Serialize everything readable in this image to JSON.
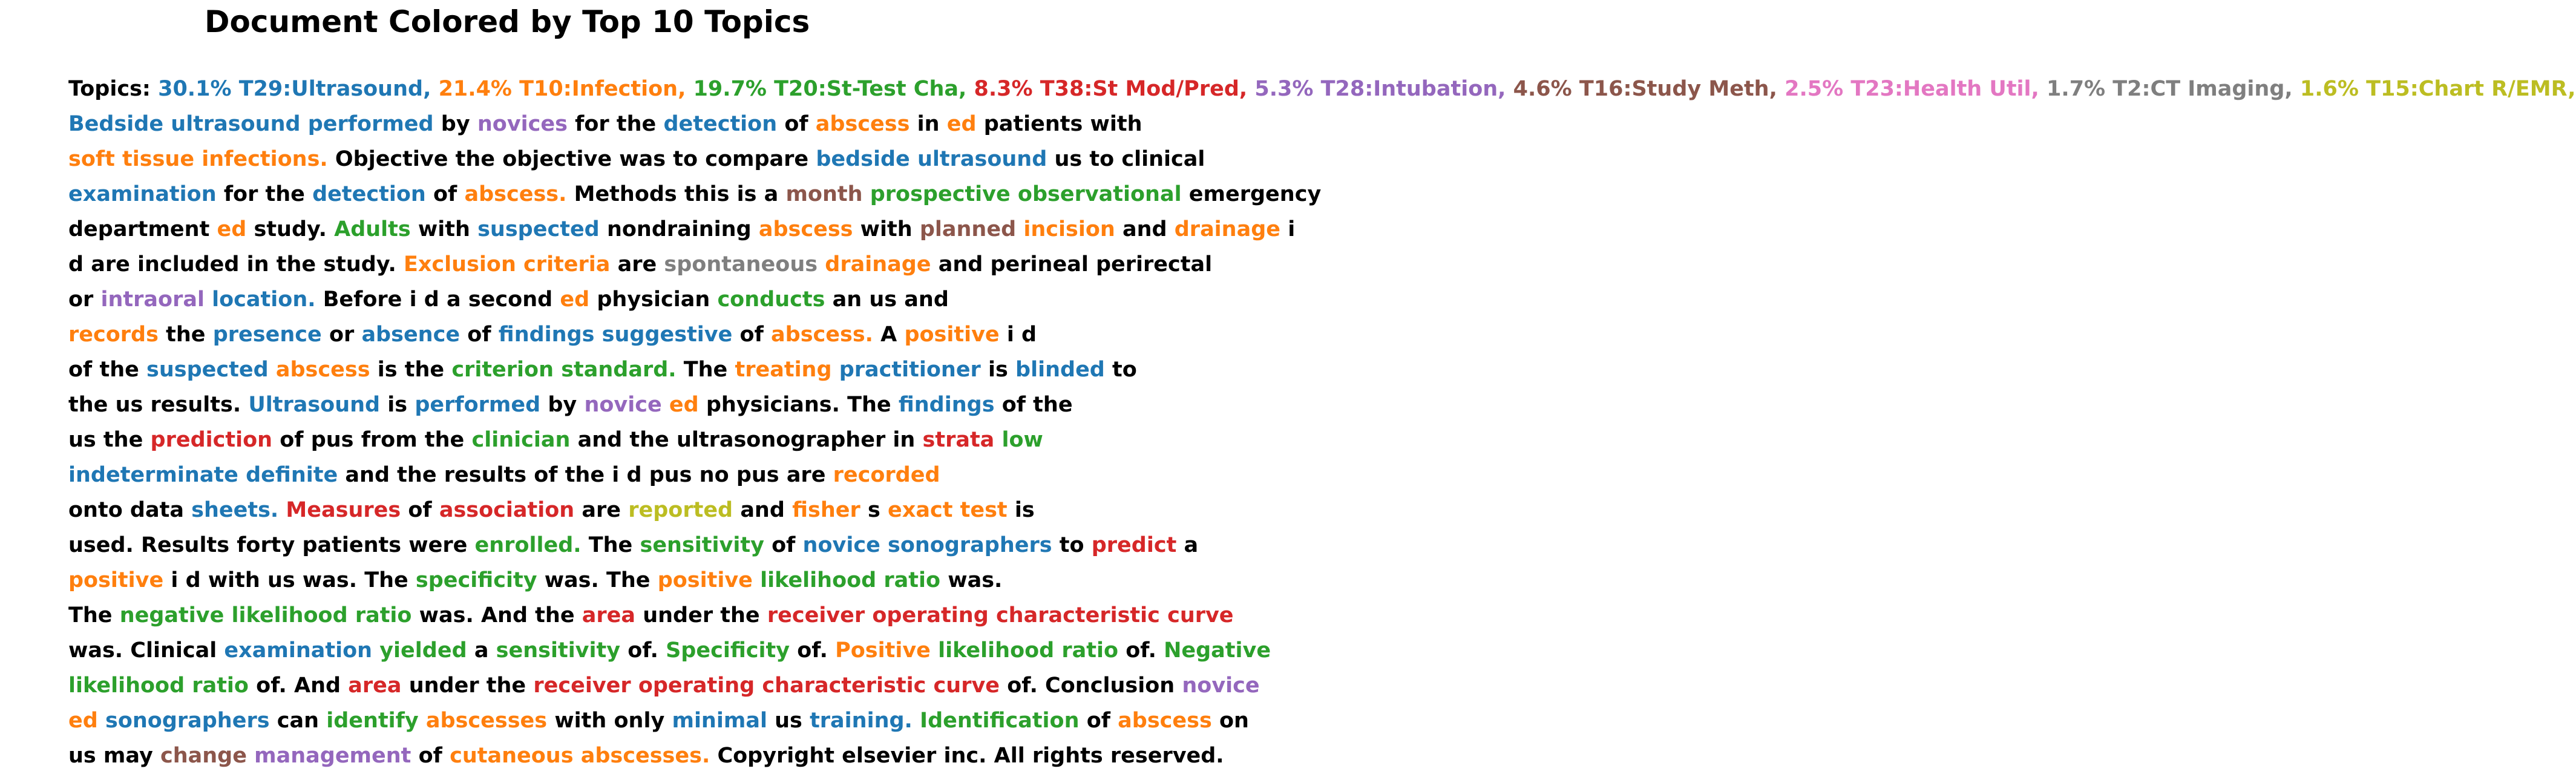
{
  "title": "Document Colored by Top 10 Topics",
  "colors": {
    "k": "#000000",
    "b": "#1f77b4",
    "o": "#ff7f0e",
    "g": "#2ca02c",
    "r": "#d62728",
    "p": "#9467bd",
    "n": "#8c564b",
    "i": "#e377c2",
    "y": "#7f7f7f",
    "l": "#bcbd22"
  },
  "lines": [
    [
      [
        "Topics:",
        "k"
      ],
      [
        "30.1% T29:Ultrasound,",
        "b"
      ],
      [
        "21.4% T10:Infection,",
        "o"
      ],
      [
        "19.7% T20:St-Test Cha,",
        "g"
      ],
      [
        "8.3% T38:St Mod/Pred,",
        "r"
      ],
      [
        "5.3% T28:Intubation,",
        "p"
      ],
      [
        "4.6% T16:Study Meth,",
        "n"
      ],
      [
        "2.5% T23:Health Util,",
        "i"
      ],
      [
        "1.7% T2:CT Imaging,",
        "y"
      ],
      [
        "1.6% T15:Chart R/EMR,",
        "l"
      ]
    ],
    [
      [
        "Bedside ultrasound performed",
        "b"
      ],
      [
        "by",
        "k"
      ],
      [
        "novices",
        "p"
      ],
      [
        "for the",
        "k"
      ],
      [
        "detection",
        "b"
      ],
      [
        "of",
        "k"
      ],
      [
        "abscess",
        "o"
      ],
      [
        "in",
        "k"
      ],
      [
        "ed",
        "o"
      ],
      [
        "patients with",
        "k"
      ]
    ],
    [
      [
        "soft tissue infections.",
        "o"
      ],
      [
        "Objective the objective was to compare",
        "k"
      ],
      [
        "bedside ultrasound",
        "b"
      ],
      [
        "us to clinical",
        "k"
      ]
    ],
    [
      [
        "examination",
        "b"
      ],
      [
        "for the",
        "k"
      ],
      [
        "detection",
        "b"
      ],
      [
        "of",
        "k"
      ],
      [
        "abscess.",
        "o"
      ],
      [
        "Methods this is a",
        "k"
      ],
      [
        "month",
        "n"
      ],
      [
        "prospective observational",
        "g"
      ],
      [
        "emergency",
        "k"
      ]
    ],
    [
      [
        "department",
        "k"
      ],
      [
        "ed",
        "o"
      ],
      [
        "study.",
        "k"
      ],
      [
        "Adults",
        "g"
      ],
      [
        "with",
        "k"
      ],
      [
        "suspected",
        "b"
      ],
      [
        "nondraining",
        "k"
      ],
      [
        "abscess",
        "o"
      ],
      [
        "with",
        "k"
      ],
      [
        "planned",
        "n"
      ],
      [
        "incision",
        "o"
      ],
      [
        "and",
        "k"
      ],
      [
        "drainage",
        "o"
      ],
      [
        "i",
        "k"
      ]
    ],
    [
      [
        "d are included in the study.",
        "k"
      ],
      [
        "Exclusion criteria",
        "o"
      ],
      [
        "are",
        "k"
      ],
      [
        "spontaneous",
        "y"
      ],
      [
        "drainage",
        "o"
      ],
      [
        "and perineal perirectal",
        "k"
      ]
    ],
    [
      [
        "or",
        "k"
      ],
      [
        "intraoral",
        "p"
      ],
      [
        "location.",
        "b"
      ],
      [
        "Before i d a second",
        "k"
      ],
      [
        "ed",
        "o"
      ],
      [
        "physician",
        "k"
      ],
      [
        "conducts",
        "g"
      ],
      [
        "an us and",
        "k"
      ]
    ],
    [
      [
        "records",
        "o"
      ],
      [
        "the",
        "k"
      ],
      [
        "presence",
        "b"
      ],
      [
        "or",
        "k"
      ],
      [
        "absence",
        "b"
      ],
      [
        "of",
        "k"
      ],
      [
        "findings suggestive",
        "b"
      ],
      [
        "of",
        "k"
      ],
      [
        "abscess.",
        "o"
      ],
      [
        "A",
        "k"
      ],
      [
        "positive",
        "o"
      ],
      [
        "i d",
        "k"
      ]
    ],
    [
      [
        "of the",
        "k"
      ],
      [
        "suspected",
        "b"
      ],
      [
        "abscess",
        "o"
      ],
      [
        "is the",
        "k"
      ],
      [
        "criterion standard.",
        "g"
      ],
      [
        "The",
        "k"
      ],
      [
        "treating",
        "o"
      ],
      [
        "practitioner",
        "b"
      ],
      [
        "is",
        "k"
      ],
      [
        "blinded",
        "b"
      ],
      [
        "to",
        "k"
      ]
    ],
    [
      [
        "the us results.",
        "k"
      ],
      [
        "Ultrasound",
        "b"
      ],
      [
        "is",
        "k"
      ],
      [
        "performed",
        "b"
      ],
      [
        "by",
        "k"
      ],
      [
        "novice",
        "p"
      ],
      [
        "ed",
        "o"
      ],
      [
        "physicians. The",
        "k"
      ],
      [
        "findings",
        "b"
      ],
      [
        "of the",
        "k"
      ]
    ],
    [
      [
        "us the",
        "k"
      ],
      [
        "prediction",
        "r"
      ],
      [
        "of pus from the",
        "k"
      ],
      [
        "clinician",
        "g"
      ],
      [
        "and the ultrasonographer in",
        "k"
      ],
      [
        "strata",
        "r"
      ],
      [
        "low",
        "g"
      ]
    ],
    [
      [
        "indeterminate definite",
        "b"
      ],
      [
        "and the results of the i d pus no pus are",
        "k"
      ],
      [
        "recorded",
        "o"
      ]
    ],
    [
      [
        "onto data",
        "k"
      ],
      [
        "sheets.",
        "b"
      ],
      [
        "Measures",
        "r"
      ],
      [
        "of",
        "k"
      ],
      [
        "association",
        "r"
      ],
      [
        "are",
        "k"
      ],
      [
        "reported",
        "l"
      ],
      [
        "and",
        "k"
      ],
      [
        "fisher",
        "o"
      ],
      [
        "s",
        "k"
      ],
      [
        "exact test",
        "o"
      ],
      [
        "is",
        "k"
      ]
    ],
    [
      [
        "used. Results forty patients were",
        "k"
      ],
      [
        "enrolled.",
        "g"
      ],
      [
        "The",
        "k"
      ],
      [
        "sensitivity",
        "g"
      ],
      [
        "of",
        "k"
      ],
      [
        "novice sonographers",
        "b"
      ],
      [
        "to",
        "k"
      ],
      [
        "predict",
        "r"
      ],
      [
        "a",
        "k"
      ]
    ],
    [
      [
        "positive",
        "o"
      ],
      [
        "i d with us was. The",
        "k"
      ],
      [
        "specificity",
        "g"
      ],
      [
        "was. The",
        "k"
      ],
      [
        "positive",
        "o"
      ],
      [
        "likelihood ratio",
        "g"
      ],
      [
        "was.",
        "k"
      ]
    ],
    [
      [
        "The",
        "k"
      ],
      [
        "negative likelihood ratio",
        "g"
      ],
      [
        "was. And the",
        "k"
      ],
      [
        "area",
        "r"
      ],
      [
        "under the",
        "k"
      ],
      [
        "receiver operating characteristic curve",
        "r"
      ]
    ],
    [
      [
        "was. Clinical",
        "k"
      ],
      [
        "examination",
        "b"
      ],
      [
        "yielded",
        "g"
      ],
      [
        "a",
        "k"
      ],
      [
        "sensitivity",
        "g"
      ],
      [
        "of.",
        "k"
      ],
      [
        "Specificity",
        "g"
      ],
      [
        "of.",
        "k"
      ],
      [
        "Positive",
        "o"
      ],
      [
        "likelihood ratio",
        "g"
      ],
      [
        "of.",
        "k"
      ],
      [
        "Negative",
        "g"
      ]
    ],
    [
      [
        "likelihood ratio",
        "g"
      ],
      [
        "of. And",
        "k"
      ],
      [
        "area",
        "r"
      ],
      [
        "under the",
        "k"
      ],
      [
        "receiver operating characteristic curve",
        "r"
      ],
      [
        "of. Conclusion",
        "k"
      ],
      [
        "novice",
        "p"
      ]
    ],
    [
      [
        "ed",
        "o"
      ],
      [
        "sonographers",
        "b"
      ],
      [
        "can",
        "k"
      ],
      [
        "identify",
        "g"
      ],
      [
        "abscesses",
        "o"
      ],
      [
        "with only",
        "k"
      ],
      [
        "minimal",
        "b"
      ],
      [
        "us",
        "k"
      ],
      [
        "training.",
        "b"
      ],
      [
        "Identification",
        "g"
      ],
      [
        "of",
        "k"
      ],
      [
        "abscess",
        "o"
      ],
      [
        "on",
        "k"
      ]
    ],
    [
      [
        "us may",
        "k"
      ],
      [
        "change",
        "n"
      ],
      [
        "management",
        "p"
      ],
      [
        "of",
        "k"
      ],
      [
        "cutaneous abscesses.",
        "o"
      ],
      [
        "Copyright elsevier inc. All rights reserved.",
        "k"
      ]
    ]
  ]
}
